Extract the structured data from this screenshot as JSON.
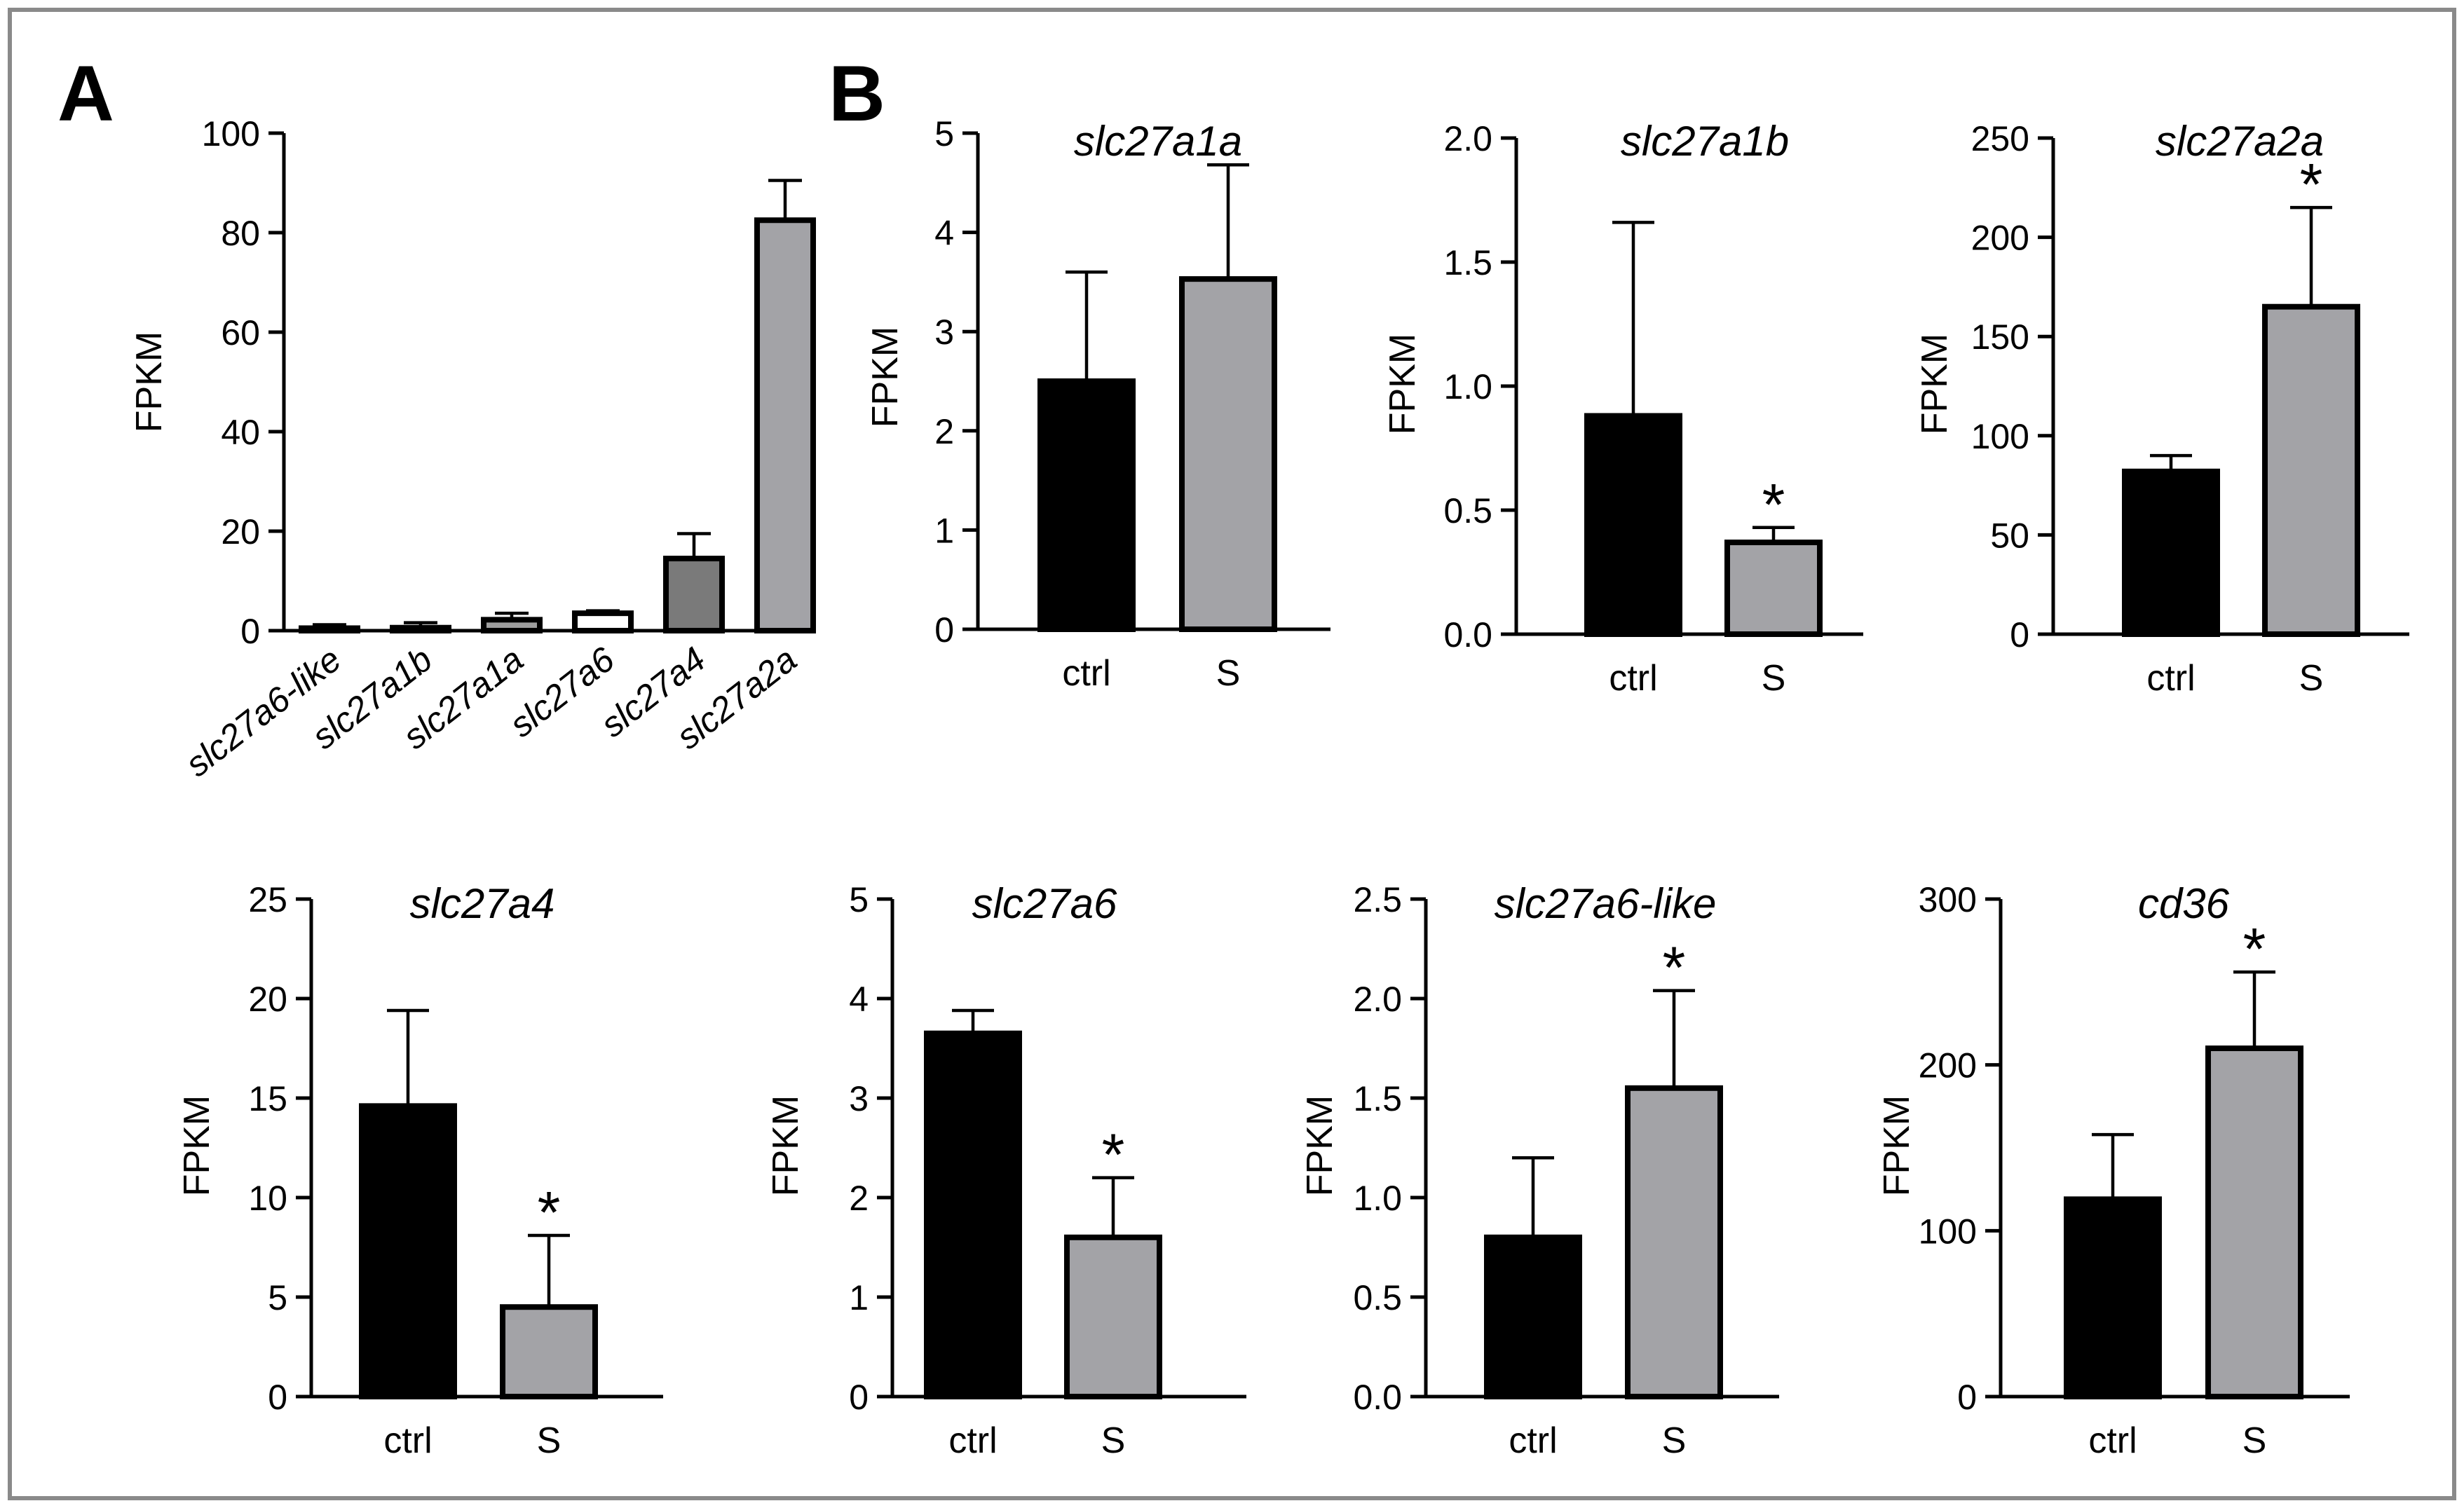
{
  "panel_labels": {
    "a": "A",
    "b": "B"
  },
  "colors": {
    "ctrl": "#000000",
    "s": "#a3a3a7",
    "frame": "#8a8a8a",
    "panelA": [
      "#c8c8c8",
      "#c8c8c8",
      "#9e9e9e",
      "#ffffff",
      "#7a7a7a",
      "#a3a3a7"
    ]
  },
  "chart_data": [
    {
      "id": "A",
      "type": "bar",
      "title": "",
      "ylabel": "FPKM",
      "xlabel": "",
      "ylim": [
        0,
        100
      ],
      "yticks": [
        0,
        20,
        40,
        60,
        80,
        100
      ],
      "categories": [
        "slc27a6-like",
        "slc27a1b",
        "slc27a1a",
        "slc27a6",
        "slc27a4",
        "slc27a2a"
      ],
      "values": [
        0.5,
        0.6,
        2.2,
        3.5,
        14.5,
        82.5
      ],
      "errors": [
        0.7,
        1.0,
        1.3,
        0.5,
        5.0,
        8.0
      ],
      "significance": [
        "",
        "",
        "",
        "",
        "",
        ""
      ]
    },
    {
      "id": "B1",
      "type": "bar",
      "title": "slc27a1a",
      "ylabel": "FPKM",
      "xlabel": "",
      "ylim": [
        0,
        5
      ],
      "yticks": [
        0,
        1,
        2,
        3,
        4,
        5
      ],
      "categories": [
        "ctrl",
        "S"
      ],
      "values": [
        2.5,
        3.53
      ],
      "errors": [
        1.1,
        1.15
      ],
      "significance": [
        "",
        ""
      ]
    },
    {
      "id": "B2",
      "type": "bar",
      "title": "slc27a1b",
      "ylabel": "FPKM",
      "xlabel": "",
      "ylim": [
        0,
        2.0
      ],
      "yticks": [
        "0.0",
        "0.5",
        "1.0",
        "1.5",
        "2.0"
      ],
      "categories": [
        "ctrl",
        "S"
      ],
      "values": [
        0.88,
        0.37
      ],
      "errors": [
        0.78,
        0.06
      ],
      "significance": [
        "",
        "*"
      ]
    },
    {
      "id": "B3",
      "type": "bar",
      "title": "slc27a2a",
      "ylabel": "FPKM",
      "xlabel": "",
      "ylim": [
        0,
        250
      ],
      "yticks": [
        0,
        50,
        100,
        150,
        200,
        250
      ],
      "categories": [
        "ctrl",
        "S"
      ],
      "values": [
        82,
        165
      ],
      "errors": [
        8,
        50
      ],
      "significance": [
        "",
        "*"
      ]
    },
    {
      "id": "B4",
      "type": "bar",
      "title": "slc27a4",
      "ylabel": "FPKM",
      "xlabel": "",
      "ylim": [
        0,
        25
      ],
      "yticks": [
        0,
        5,
        10,
        15,
        20,
        25
      ],
      "categories": [
        "ctrl",
        "S"
      ],
      "values": [
        14.6,
        4.5
      ],
      "errors": [
        4.8,
        3.6
      ],
      "significance": [
        "",
        "*"
      ]
    },
    {
      "id": "B5",
      "type": "bar",
      "title": "slc27a6",
      "ylabel": "FPKM",
      "xlabel": "",
      "ylim": [
        0,
        5
      ],
      "yticks": [
        0,
        1,
        2,
        3,
        4,
        5
      ],
      "categories": [
        "ctrl",
        "S"
      ],
      "values": [
        3.65,
        1.6
      ],
      "errors": [
        0.23,
        0.6
      ],
      "significance": [
        "",
        "*"
      ]
    },
    {
      "id": "B6",
      "type": "bar",
      "title": "slc27a6-like",
      "ylabel": "FPKM",
      "xlabel": "",
      "ylim": [
        0,
        2.5
      ],
      "yticks": [
        "0.0",
        "0.5",
        "1.0",
        "1.5",
        "2.0",
        "2.5"
      ],
      "categories": [
        "ctrl",
        "S"
      ],
      "values": [
        0.8,
        1.55
      ],
      "errors": [
        0.4,
        0.49
      ],
      "significance": [
        "",
        "*"
      ]
    },
    {
      "id": "B7",
      "type": "bar",
      "title": "cd36",
      "ylabel": "FPKM",
      "xlabel": "",
      "ylim": [
        0,
        300
      ],
      "yticks": [
        0,
        100,
        200,
        300
      ],
      "categories": [
        "ctrl",
        "S"
      ],
      "values": [
        119,
        210
      ],
      "errors": [
        39,
        46
      ],
      "significance": [
        "",
        "*"
      ]
    }
  ]
}
